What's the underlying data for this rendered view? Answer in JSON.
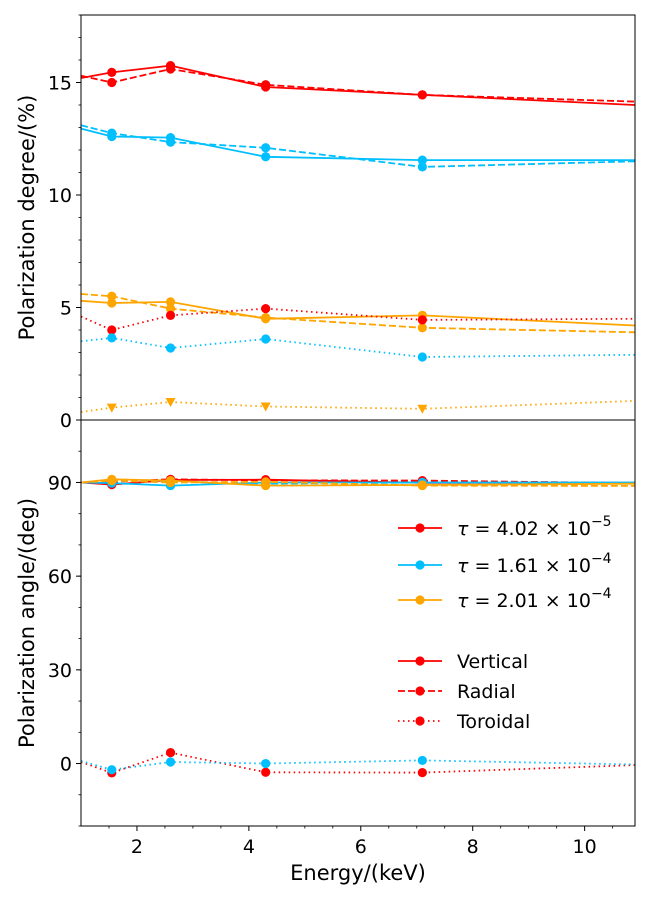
{
  "chart_data": [
    {
      "panel": "top",
      "type": "line",
      "ylabel": "Polarization degree/(%)",
      "xlim": [
        1.0,
        10.9
      ],
      "ylim": [
        0,
        18
      ],
      "yticks": [
        0,
        5,
        10,
        15
      ],
      "ytick_labels": [
        "0",
        "5",
        "10",
        "15"
      ],
      "series": [
        {
          "name": "tau1-vertical",
          "color": "#ff0000",
          "style": "solid",
          "marker": "circle",
          "x": [
            1.0,
            1.55,
            2.6,
            4.3,
            7.1,
            10.9
          ],
          "y": [
            15.2,
            15.45,
            15.75,
            14.8,
            14.45,
            14.0
          ],
          "marked": [
            false,
            true,
            true,
            true,
            true,
            false
          ]
        },
        {
          "name": "tau1-radial",
          "color": "#ff0000",
          "style": "dashed",
          "marker": "circle",
          "x": [
            1.0,
            1.55,
            2.6,
            4.3,
            7.1,
            10.9
          ],
          "y": [
            15.3,
            15.0,
            15.6,
            14.9,
            14.45,
            14.15
          ],
          "marked": [
            false,
            true,
            true,
            true,
            true,
            false
          ]
        },
        {
          "name": "tau2-vertical",
          "color": "#00bfff",
          "style": "solid",
          "marker": "circle",
          "x": [
            1.0,
            1.55,
            2.6,
            4.3,
            7.1,
            10.9
          ],
          "y": [
            12.95,
            12.6,
            12.55,
            11.7,
            11.55,
            11.55
          ],
          "marked": [
            false,
            true,
            true,
            true,
            true,
            false
          ]
        },
        {
          "name": "tau2-radial",
          "color": "#00bfff",
          "style": "dashed",
          "marker": "circle",
          "x": [
            1.0,
            1.55,
            2.6,
            4.3,
            7.1,
            10.9
          ],
          "y": [
            13.1,
            12.75,
            12.35,
            12.1,
            11.25,
            11.5
          ],
          "marked": [
            false,
            true,
            true,
            true,
            true,
            false
          ]
        },
        {
          "name": "tau3-vertical",
          "color": "#ffa500",
          "style": "solid",
          "marker": "circle",
          "x": [
            1.0,
            1.55,
            2.6,
            4.3,
            7.1,
            10.9
          ],
          "y": [
            5.3,
            5.2,
            5.25,
            4.5,
            4.65,
            4.2
          ],
          "marked": [
            false,
            true,
            true,
            true,
            true,
            false
          ]
        },
        {
          "name": "tau3-radial",
          "color": "#ffa500",
          "style": "dashed",
          "marker": "circle",
          "x": [
            1.0,
            1.55,
            2.6,
            4.3,
            7.1,
            10.9
          ],
          "y": [
            5.6,
            5.5,
            4.95,
            4.55,
            4.1,
            3.9
          ],
          "marked": [
            false,
            true,
            true,
            true,
            true,
            false
          ]
        },
        {
          "name": "tau1-toroidal",
          "color": "#ff0000",
          "style": "dotted",
          "marker": "circle",
          "x": [
            1.0,
            1.55,
            2.6,
            4.3,
            7.1,
            10.9
          ],
          "y": [
            4.6,
            4.0,
            4.65,
            4.95,
            4.45,
            4.5
          ],
          "marked": [
            false,
            true,
            true,
            true,
            true,
            false
          ]
        },
        {
          "name": "tau2-toroidal",
          "color": "#00bfff",
          "style": "dotted",
          "marker": "circle",
          "x": [
            1.0,
            1.55,
            2.6,
            4.3,
            7.1,
            10.9
          ],
          "y": [
            3.5,
            3.65,
            3.2,
            3.6,
            2.8,
            2.9
          ],
          "marked": [
            false,
            true,
            true,
            true,
            true,
            false
          ]
        },
        {
          "name": "tau3-toroidal",
          "color": "#ffa500",
          "style": "dotted",
          "marker": "triangle",
          "x": [
            1.0,
            1.55,
            2.6,
            4.3,
            7.1,
            10.9
          ],
          "y": [
            0.35,
            0.55,
            0.8,
            0.6,
            0.5,
            0.85
          ],
          "marked": [
            false,
            true,
            true,
            true,
            true,
            false
          ]
        }
      ]
    },
    {
      "panel": "bottom",
      "type": "line",
      "xlabel": "Energy/(keV)",
      "ylabel": "Polarization angle/(deg)",
      "xlim": [
        1.0,
        10.9
      ],
      "ylim": [
        -20,
        110
      ],
      "xticks": [
        2,
        4,
        6,
        8,
        10
      ],
      "xtick_labels": [
        "2",
        "4",
        "6",
        "8",
        "10"
      ],
      "yticks": [
        0,
        30,
        60,
        90
      ],
      "ytick_labels": [
        "0",
        "30",
        "60",
        "90"
      ],
      "series": [
        {
          "name": "tau1-vertical",
          "color": "#ff0000",
          "style": "solid",
          "marker": "circle",
          "x": [
            1.0,
            1.55,
            2.6,
            4.3,
            7.1,
            10.9
          ],
          "y": [
            90,
            89.3,
            90.8,
            90.9,
            89.9,
            89.9
          ],
          "marked": [
            false,
            true,
            true,
            true,
            true,
            false
          ]
        },
        {
          "name": "tau1-radial",
          "color": "#ff0000",
          "style": "dashed",
          "marker": "circle",
          "x": [
            1.0,
            1.55,
            2.6,
            4.3,
            7.1,
            10.9
          ],
          "y": [
            90,
            90.2,
            91.0,
            90.7,
            90.6,
            89.8
          ],
          "marked": [
            false,
            true,
            true,
            true,
            true,
            false
          ]
        },
        {
          "name": "tau2-vertical",
          "color": "#00bfff",
          "style": "solid",
          "marker": "circle",
          "x": [
            1.0,
            1.55,
            2.6,
            4.3,
            7.1,
            10.9
          ],
          "y": [
            90,
            89.8,
            89.0,
            90.0,
            90.0,
            90.0
          ],
          "marked": [
            false,
            true,
            true,
            true,
            true,
            false
          ]
        },
        {
          "name": "tau2-radial",
          "color": "#00bfff",
          "style": "dashed",
          "marker": "circle",
          "x": [
            1.0,
            1.55,
            2.6,
            4.3,
            7.1,
            10.9
          ],
          "y": [
            90,
            90.5,
            90.3,
            89.6,
            90.0,
            89.9
          ],
          "marked": [
            false,
            true,
            true,
            true,
            true,
            false
          ]
        },
        {
          "name": "tau3-vertical",
          "color": "#ffa500",
          "style": "solid",
          "marker": "circle",
          "x": [
            1.0,
            1.55,
            2.6,
            4.3,
            7.1,
            10.9
          ],
          "y": [
            90,
            91.0,
            90.6,
            89.0,
            89.2,
            89.6
          ],
          "marked": [
            false,
            true,
            true,
            true,
            true,
            false
          ]
        },
        {
          "name": "tau3-radial",
          "color": "#ffa500",
          "style": "dashed",
          "marker": "circle",
          "x": [
            1.0,
            1.55,
            2.6,
            4.3,
            7.1,
            10.9
          ],
          "y": [
            90,
            90.6,
            90.0,
            90.2,
            89.0,
            88.9
          ],
          "marked": [
            false,
            true,
            true,
            true,
            true,
            false
          ]
        },
        {
          "name": "tau1-toroidal",
          "color": "#ff0000",
          "style": "dotted",
          "marker": "circle",
          "x": [
            1.0,
            1.55,
            2.6,
            4.3,
            7.1,
            10.9
          ],
          "y": [
            0.5,
            -3.0,
            3.5,
            -2.8,
            -2.9,
            -0.5
          ],
          "marked": [
            false,
            true,
            true,
            true,
            true,
            false
          ]
        },
        {
          "name": "tau2-toroidal",
          "color": "#00bfff",
          "style": "dotted",
          "marker": "circle",
          "x": [
            1.0,
            1.55,
            2.6,
            4.3,
            7.1,
            10.9
          ],
          "y": [
            0.8,
            -2.0,
            0.5,
            0.0,
            1.0,
            -0.3
          ],
          "marked": [
            false,
            true,
            true,
            true,
            true,
            false
          ]
        }
      ],
      "legend": {
        "placement": "center-right",
        "entries": [
          {
            "label_prefix": "τ = ",
            "mantissa": "4.02",
            "times": "×",
            "base": "10",
            "exponent": "−5",
            "color": "#ff0000",
            "style": "solid"
          },
          {
            "label_prefix": "τ = ",
            "mantissa": "1.61",
            "times": "×",
            "base": "10",
            "exponent": "−4",
            "color": "#00bfff",
            "style": "solid"
          },
          {
            "label_prefix": "τ = ",
            "mantissa": "2.01",
            "times": "×",
            "base": "10",
            "exponent": "−4",
            "color": "#ffa500",
            "style": "solid"
          },
          {
            "label": "Vertical",
            "color": "#ff0000",
            "style": "solid"
          },
          {
            "label": "Radial",
            "color": "#ff0000",
            "style": "dashed"
          },
          {
            "label": "Toroidal",
            "color": "#ff0000",
            "style": "dotted"
          }
        ]
      }
    }
  ]
}
